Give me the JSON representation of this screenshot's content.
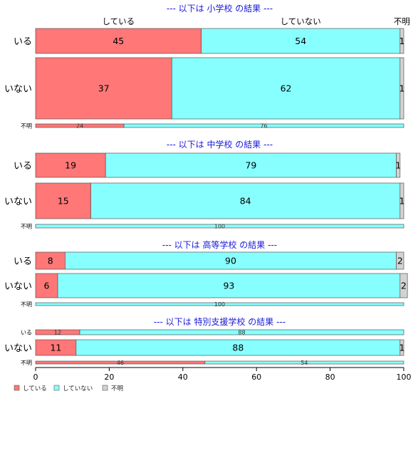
{
  "chart_data": {
    "type": "bar",
    "orientation": "horizontal",
    "stacked": true,
    "column_labels": [
      "している",
      "していない",
      "不明"
    ],
    "colors": [
      "#ff7777",
      "#88ffff",
      "#d3d3d3"
    ],
    "legend": {
      "position": "bottom-left",
      "entries": [
        "している",
        "していない",
        "不明"
      ]
    },
    "xlim": [
      0,
      100
    ],
    "xticks": [
      0,
      20,
      40,
      60,
      80,
      100
    ],
    "panels": [
      {
        "title": "--- 以下は 小学校 の結果 ---",
        "rows": [
          {
            "label": "いる",
            "values": [
              45,
              54,
              1
            ]
          },
          {
            "label": "いない",
            "values": [
              37,
              62,
              1
            ]
          },
          {
            "label": "不明",
            "values": [
              24,
              76,
              0
            ]
          }
        ]
      },
      {
        "title": "--- 以下は 中学校 の結果 ---",
        "rows": [
          {
            "label": "いる",
            "values": [
              19,
              79,
              1
            ]
          },
          {
            "label": "いない",
            "values": [
              15,
              84,
              1
            ]
          },
          {
            "label": "不明",
            "values": [
              0,
              100,
              0
            ]
          }
        ]
      },
      {
        "title": "--- 以下は 高等学校 の結果 ---",
        "rows": [
          {
            "label": "いる",
            "values": [
              8,
              90,
              2
            ]
          },
          {
            "label": "いない",
            "values": [
              6,
              93,
              2
            ]
          },
          {
            "label": "不明",
            "values": [
              0,
              100,
              0
            ]
          }
        ]
      },
      {
        "title": "--- 以下は 特別支援学校 の結果 ---",
        "rows": [
          {
            "label": "いる",
            "values": [
              12,
              88,
              0
            ]
          },
          {
            "label": "いない",
            "values": [
              11,
              88,
              1
            ]
          },
          {
            "label": "不明",
            "values": [
              46,
              54,
              0
            ]
          }
        ]
      }
    ]
  }
}
